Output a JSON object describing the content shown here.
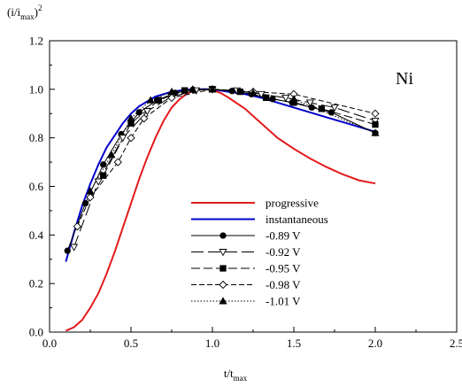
{
  "chart_data": {
    "type": "line",
    "title": "",
    "annotation": "Ni",
    "xlabel": {
      "base": "t/t",
      "sub": "max"
    },
    "ylabel": {
      "open": "(i/i",
      "sub": "max",
      "close": ")",
      "sup": "2"
    },
    "xlim": [
      0.0,
      2.5
    ],
    "ylim": [
      0.0,
      1.2
    ],
    "xticks": [
      "0.0",
      "0.5",
      "1.0",
      "1.5",
      "2.0",
      "2.5"
    ],
    "yticks": [
      "0.0",
      "0.2",
      "0.4",
      "0.6",
      "0.8",
      "1.0",
      "1.2"
    ],
    "grid": false,
    "legend_position": "center-right",
    "theory": [
      {
        "name": "progressive",
        "color": "#e41a1c",
        "x": [
          0.1,
          0.15,
          0.2,
          0.25,
          0.3,
          0.35,
          0.4,
          0.45,
          0.5,
          0.55,
          0.6,
          0.65,
          0.7,
          0.75,
          0.8,
          0.85,
          0.9,
          0.95,
          1.0,
          1.05,
          1.1,
          1.2,
          1.3,
          1.4,
          1.5,
          1.6,
          1.7,
          1.8,
          1.9,
          2.0
        ],
        "y": [
          0.006,
          0.02,
          0.05,
          0.1,
          0.16,
          0.24,
          0.33,
          0.43,
          0.53,
          0.63,
          0.72,
          0.8,
          0.87,
          0.925,
          0.96,
          0.985,
          0.997,
          1.0,
          0.997,
          0.985,
          0.965,
          0.92,
          0.86,
          0.8,
          0.755,
          0.715,
          0.68,
          0.65,
          0.625,
          0.612
        ]
      },
      {
        "name": "instantaneous",
        "color": "#0000cc",
        "x": [
          0.1,
          0.15,
          0.2,
          0.25,
          0.3,
          0.35,
          0.4,
          0.45,
          0.5,
          0.55,
          0.6,
          0.65,
          0.7,
          0.75,
          0.8,
          0.85,
          0.9,
          0.95,
          1.0,
          1.1,
          1.2,
          1.3,
          1.4,
          1.5,
          1.6,
          1.7,
          1.8,
          1.9,
          2.0
        ],
        "y": [
          0.29,
          0.41,
          0.52,
          0.61,
          0.69,
          0.76,
          0.81,
          0.86,
          0.9,
          0.93,
          0.95,
          0.97,
          0.98,
          0.99,
          0.995,
          0.998,
          1.0,
          1.0,
          1.0,
          0.99,
          0.98,
          0.965,
          0.945,
          0.925,
          0.905,
          0.885,
          0.865,
          0.845,
          0.825
        ]
      }
    ],
    "series": [
      {
        "name": "-0.89 V",
        "marker": "circle-filled",
        "dash": "",
        "x": [
          0.11,
          0.22,
          0.33,
          0.44,
          0.55,
          0.66,
          0.77,
          0.88,
          1.0,
          1.12,
          1.24,
          1.37,
          1.49,
          1.61,
          1.73,
          2.0
        ],
        "y": [
          0.335,
          0.53,
          0.69,
          0.815,
          0.905,
          0.955,
          0.985,
          0.998,
          1.0,
          0.993,
          0.98,
          0.96,
          0.945,
          0.925,
          0.905,
          0.82
        ]
      },
      {
        "name": "-0.92 V",
        "marker": "triangle-down-open",
        "dash": "14 5",
        "x": [
          0.15,
          0.3,
          0.45,
          0.6,
          0.75,
          0.9,
          1.0,
          1.15,
          1.3,
          1.45,
          1.6,
          1.75,
          2.0
        ],
        "y": [
          0.35,
          0.62,
          0.8,
          0.91,
          0.97,
          0.995,
          1.0,
          0.995,
          0.98,
          0.965,
          0.945,
          0.925,
          0.87
        ]
      },
      {
        "name": "-0.95 V",
        "marker": "square-filled",
        "dash": "10 4",
        "x": [
          0.33,
          0.5,
          0.67,
          0.83,
          1.0,
          1.17,
          1.33,
          1.5,
          1.67,
          2.0
        ],
        "y": [
          0.645,
          0.86,
          0.955,
          0.995,
          1.0,
          0.99,
          0.965,
          0.945,
          0.92,
          0.855
        ]
      },
      {
        "name": "-0.98 V",
        "marker": "diamond-open",
        "dash": "6 3",
        "x": [
          0.17,
          0.25,
          0.42,
          0.5,
          0.58,
          0.75,
          1.0,
          1.25,
          1.5,
          2.0
        ],
        "y": [
          0.435,
          0.555,
          0.7,
          0.8,
          0.88,
          0.965,
          1.0,
          0.99,
          0.98,
          0.9
        ]
      },
      {
        "name": "-1.01 V",
        "marker": "triangle-up-filled",
        "dash": "1.5 2",
        "x": [
          0.25,
          0.38,
          0.5,
          0.62,
          0.75,
          0.88,
          1.0,
          1.25,
          1.5,
          2.0
        ],
        "y": [
          0.58,
          0.73,
          0.88,
          0.955,
          0.99,
          1.0,
          1.0,
          0.985,
          0.96,
          0.82
        ]
      }
    ]
  }
}
